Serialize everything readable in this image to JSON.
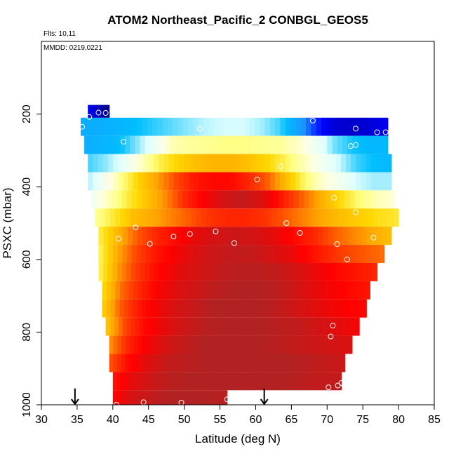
{
  "header": {
    "title": "ATOM2 Northeast_Pacific_2 CONBGL_GEOS5",
    "flights_label": "Flts: 10,11",
    "mmdd_label": "MMDD: 0219,0221"
  },
  "chart_data": {
    "type": "heatmap",
    "title": "ATOM2 Northeast_Pacific_2 CONBGL_GEOS5",
    "xlabel": "Latitude (deg N)",
    "ylabel": "PSXC (mbar)",
    "xlim": [
      30,
      85
    ],
    "ylim": [
      1000,
      0
    ],
    "y_reversed": true,
    "x_ticks": [
      30,
      35,
      40,
      45,
      50,
      55,
      60,
      65,
      70,
      75,
      80,
      85
    ],
    "y_ticks": [
      200,
      400,
      600,
      800,
      1000
    ],
    "grid": false,
    "legend": "none",
    "colormap": [
      "#00008b",
      "#0000ff",
      "#1e90ff",
      "#00bfff",
      "#e0ffff",
      "#ffffe0",
      "#ffff80",
      "#ffd700",
      "#ffa500",
      "#ff4500",
      "#ff0000",
      "#b22222"
    ],
    "layers": [
      {
        "p_top": 175,
        "p_bot": 210,
        "lat_min": 36.5,
        "lat_max": 39.5,
        "values": [
          0.1,
          0.05,
          0.02,
          0.0
        ]
      },
      {
        "p_top": 210,
        "p_bot": 260,
        "lat_min": 35.5,
        "lat_max": 78.5,
        "values": [
          0.24,
          0.24,
          0.25,
          0.27,
          0.29,
          0.31,
          0.33,
          0.35,
          0.36,
          0.36,
          0.34,
          0.3,
          0.22,
          0.12,
          0.06,
          0.05,
          0.06,
          0.08
        ]
      },
      {
        "p_top": 260,
        "p_bot": 310,
        "lat_min": 36,
        "lat_max": 78.5,
        "values": [
          0.24,
          0.25,
          0.27,
          0.33,
          0.4,
          0.5,
          0.52,
          0.53,
          0.54,
          0.54,
          0.53,
          0.52,
          0.48,
          0.4,
          0.32,
          0.28,
          0.26,
          0.26
        ]
      },
      {
        "p_top": 310,
        "p_bot": 360,
        "lat_min": 36.5,
        "lat_max": 79,
        "values": [
          0.3,
          0.33,
          0.38,
          0.48,
          0.58,
          0.64,
          0.68,
          0.7,
          0.7,
          0.68,
          0.64,
          0.58,
          0.5,
          0.42,
          0.36,
          0.3,
          0.27,
          0.26
        ]
      },
      {
        "p_top": 360,
        "p_bot": 410,
        "lat_min": 36.5,
        "lat_max": 79,
        "values": [
          0.34,
          0.42,
          0.55,
          0.66,
          0.74,
          0.82,
          0.88,
          0.9,
          0.9,
          0.86,
          0.8,
          0.7,
          0.58,
          0.48,
          0.42,
          0.36,
          0.34,
          0.34
        ]
      },
      {
        "p_top": 410,
        "p_bot": 460,
        "lat_min": 37,
        "lat_max": 79.5,
        "values": [
          0.4,
          0.5,
          0.6,
          0.68,
          0.76,
          0.86,
          0.92,
          0.96,
          0.98,
          0.95,
          0.88,
          0.8,
          0.72,
          0.64,
          0.56,
          0.5,
          0.46
        ]
      },
      {
        "p_top": 460,
        "p_bot": 510,
        "lat_min": 37.5,
        "lat_max": 80,
        "values": [
          0.52,
          0.6,
          0.68,
          0.72,
          0.76,
          0.8,
          0.84,
          0.86,
          0.86,
          0.84,
          0.8,
          0.76,
          0.72,
          0.68,
          0.65,
          0.62,
          0.6
        ]
      },
      {
        "p_top": 510,
        "p_bot": 560,
        "lat_min": 38,
        "lat_max": 79,
        "values": [
          0.58,
          0.7,
          0.8,
          0.86,
          0.9,
          0.94,
          0.96,
          0.97,
          0.96,
          0.94,
          0.9,
          0.86,
          0.8,
          0.76,
          0.72,
          0.68
        ]
      },
      {
        "p_top": 560,
        "p_bot": 610,
        "lat_min": 38,
        "lat_max": 78,
        "values": [
          0.56,
          0.72,
          0.82,
          0.88,
          0.92,
          0.95,
          0.97,
          0.98,
          0.98,
          0.96,
          0.94,
          0.9,
          0.86,
          0.82,
          0.8,
          0.78
        ]
      },
      {
        "p_top": 610,
        "p_bot": 660,
        "lat_min": 38,
        "lat_max": 77,
        "values": [
          0.56,
          0.74,
          0.84,
          0.9,
          0.94,
          0.96,
          0.98,
          0.99,
          0.99,
          0.98,
          0.96,
          0.93,
          0.9,
          0.88,
          0.86
        ]
      },
      {
        "p_top": 660,
        "p_bot": 710,
        "lat_min": 38.5,
        "lat_max": 76,
        "values": [
          0.62,
          0.78,
          0.86,
          0.92,
          0.95,
          0.97,
          0.99,
          1.0,
          1.0,
          0.99,
          0.97,
          0.94,
          0.92,
          0.9,
          0.88
        ]
      },
      {
        "p_top": 710,
        "p_bot": 760,
        "lat_min": 38.5,
        "lat_max": 75.5,
        "values": [
          0.64,
          0.8,
          0.88,
          0.93,
          0.96,
          0.98,
          1.0,
          1.0,
          1.0,
          0.99,
          0.97,
          0.95,
          0.93,
          0.91,
          0.9
        ]
      },
      {
        "p_top": 760,
        "p_bot": 810,
        "lat_min": 39,
        "lat_max": 74.5,
        "values": [
          0.66,
          0.82,
          0.9,
          0.94,
          0.97,
          0.99,
          1.0,
          1.0,
          1.0,
          0.99,
          0.98,
          0.96,
          0.94,
          0.92
        ]
      },
      {
        "p_top": 810,
        "p_bot": 860,
        "lat_min": 39.5,
        "lat_max": 73.5,
        "values": [
          0.74,
          0.86,
          0.92,
          0.96,
          0.98,
          1.0,
          1.0,
          1.0,
          1.0,
          0.99,
          0.98,
          0.97,
          0.96,
          0.95
        ]
      },
      {
        "p_top": 860,
        "p_bot": 910,
        "lat_min": 39.5,
        "lat_max": 72.5,
        "values": [
          0.8,
          0.9,
          0.95,
          0.98,
          0.99,
          1.0,
          1.0,
          1.0,
          1.0,
          1.0,
          0.99,
          0.98,
          0.97
        ]
      },
      {
        "p_top": 910,
        "p_bot": 960,
        "lat_min": 40,
        "lat_max": 72,
        "values": [
          0.88,
          0.94,
          0.97,
          0.99,
          1.0,
          1.0,
          1.0,
          1.0,
          1.0,
          1.0,
          0.99,
          0.98,
          0.98
        ]
      },
      {
        "p_top": 960,
        "p_bot": 1010,
        "lat_min": 40,
        "lat_max": 56,
        "values": [
          0.9,
          0.96,
          0.98,
          1.0,
          1.0,
          1.0,
          0.99
        ]
      }
    ],
    "observations": [
      {
        "lat": 35.7,
        "p": 235
      },
      {
        "lat": 36.7,
        "p": 208
      },
      {
        "lat": 38,
        "p": 196
      },
      {
        "lat": 39,
        "p": 197
      },
      {
        "lat": 52.2,
        "p": 240
      },
      {
        "lat": 68,
        "p": 218
      },
      {
        "lat": 74,
        "p": 240
      },
      {
        "lat": 77,
        "p": 250
      },
      {
        "lat": 78.2,
        "p": 250
      },
      {
        "lat": 41.5,
        "p": 276
      },
      {
        "lat": 46.5,
        "p": 288
      },
      {
        "lat": 73.3,
        "p": 288
      },
      {
        "lat": 74,
        "p": 285
      },
      {
        "lat": 63.5,
        "p": 344
      },
      {
        "lat": 60.2,
        "p": 380
      },
      {
        "lat": 71,
        "p": 430
      },
      {
        "lat": 74,
        "p": 470
      },
      {
        "lat": 64.3,
        "p": 500
      },
      {
        "lat": 43.2,
        "p": 512
      },
      {
        "lat": 66.2,
        "p": 527
      },
      {
        "lat": 54.4,
        "p": 523
      },
      {
        "lat": 50.8,
        "p": 530
      },
      {
        "lat": 48.5,
        "p": 537
      },
      {
        "lat": 76.5,
        "p": 540
      },
      {
        "lat": 40.8,
        "p": 543
      },
      {
        "lat": 45.2,
        "p": 557
      },
      {
        "lat": 57,
        "p": 555
      },
      {
        "lat": 71.4,
        "p": 558
      },
      {
        "lat": 72.8,
        "p": 600
      },
      {
        "lat": 70.8,
        "p": 782
      },
      {
        "lat": 70.5,
        "p": 812
      },
      {
        "lat": 70.2,
        "p": 952
      },
      {
        "lat": 71.5,
        "p": 947
      },
      {
        "lat": 72,
        "p": 940
      },
      {
        "lat": 56,
        "p": 985
      },
      {
        "lat": 44.3,
        "p": 993
      },
      {
        "lat": 49.6,
        "p": 994
      },
      {
        "lat": 40.5,
        "p": 1000
      }
    ],
    "arrows": [
      {
        "lat": 34.7,
        "p_top": 955,
        "p_bot": 1000
      },
      {
        "lat": 61.2,
        "p_top": 955,
        "p_bot": 1000
      }
    ]
  }
}
